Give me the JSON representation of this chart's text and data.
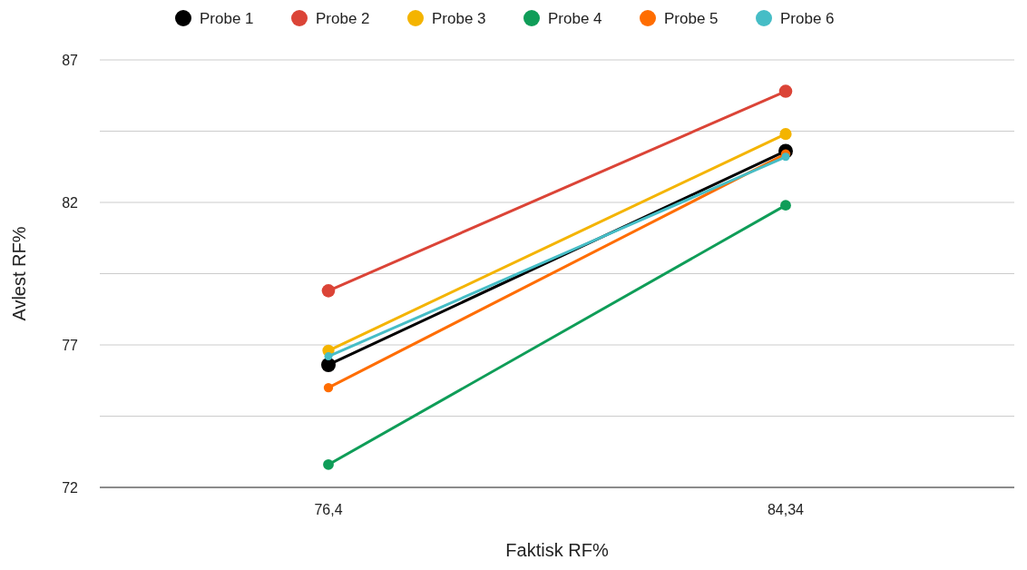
{
  "chart_data": {
    "type": "line",
    "xlabel": "Faktisk RF%",
    "ylabel": "Avlest RF%",
    "categories": [
      "76,4",
      "84,34"
    ],
    "ylim": [
      72,
      87
    ],
    "yticks": [
      72,
      {
        "value": 74.5,
        "label": null
      },
      77,
      {
        "value": 79.5,
        "label": null
      },
      82,
      {
        "value": 84.5,
        "label": null
      },
      87
    ],
    "grid": "y",
    "legend": "top",
    "marker": "circle",
    "series": [
      {
        "name": "Probe 1",
        "color": "#000000",
        "values": [
          76.3,
          83.8
        ]
      },
      {
        "name": "Probe 2",
        "color": "#db4437",
        "values": [
          78.9,
          85.9
        ]
      },
      {
        "name": "Probe 3",
        "color": "#f4b400",
        "values": [
          76.8,
          84.4
        ]
      },
      {
        "name": "Probe 4",
        "color": "#0f9d58",
        "values": [
          72.8,
          81.9
        ]
      },
      {
        "name": "Probe 5",
        "color": "#ff6d01",
        "values": [
          75.5,
          83.7
        ]
      },
      {
        "name": "Probe 6",
        "color": "#46bdc6",
        "values": [
          76.6,
          83.6
        ]
      }
    ]
  }
}
